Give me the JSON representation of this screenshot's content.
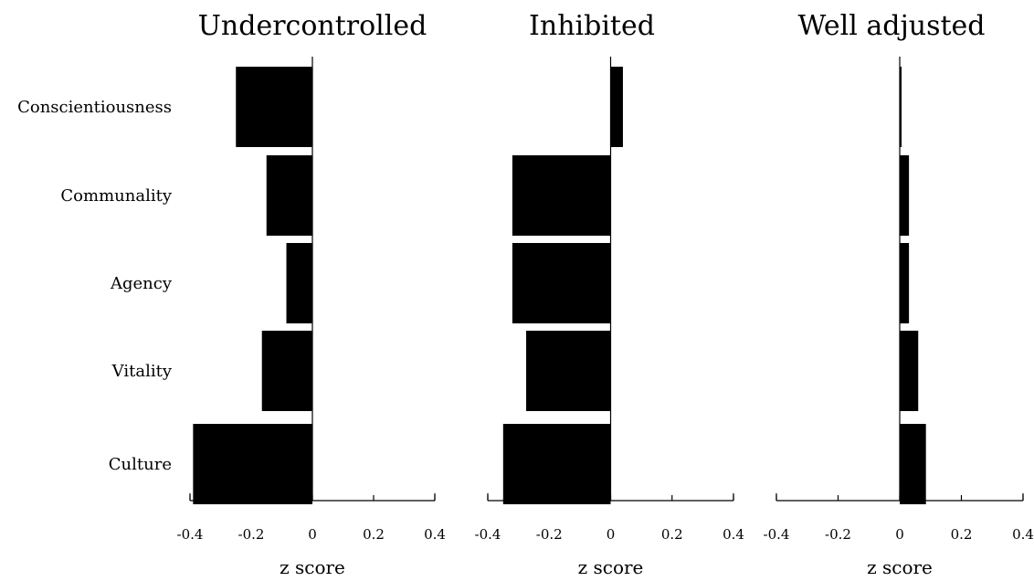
{
  "chart_data": [
    {
      "type": "bar",
      "orientation": "horizontal",
      "title": "Undercontrolled",
      "categories": [
        "Conscientiousness",
        "Communality",
        "Agency",
        "Vitality",
        "Culture"
      ],
      "values": [
        -0.25,
        -0.15,
        -0.085,
        -0.165,
        -0.39
      ],
      "xlabel": "z score",
      "xlim": [
        -0.4,
        0.4
      ],
      "xticks": [
        "-0.4",
        "-0.2",
        "0",
        "0.2",
        "0.4"
      ]
    },
    {
      "type": "bar",
      "orientation": "horizontal",
      "title": "Inhibited",
      "categories": [
        "Conscientiousness",
        "Communality",
        "Agency",
        "Vitality",
        "Culture"
      ],
      "values": [
        0.04,
        -0.32,
        -0.32,
        -0.275,
        -0.35
      ],
      "xlabel": "z score",
      "xlim": [
        -0.4,
        0.4
      ],
      "xticks": [
        "-0.4",
        "-0.2",
        "0",
        "0.2",
        "0.4"
      ]
    },
    {
      "type": "bar",
      "orientation": "horizontal",
      "title": "Well adjusted",
      "categories": [
        "Conscientiousness",
        "Communality",
        "Agency",
        "Vitality",
        "Culture"
      ],
      "values": [
        0.005,
        0.03,
        0.03,
        0.06,
        0.085
      ],
      "xlabel": "z score",
      "xlim": [
        -0.4,
        0.4
      ],
      "xticks": [
        "-0.4",
        "-0.2",
        "0",
        "0.2",
        "0.4"
      ]
    }
  ],
  "colors": {
    "bar": "#000000"
  }
}
